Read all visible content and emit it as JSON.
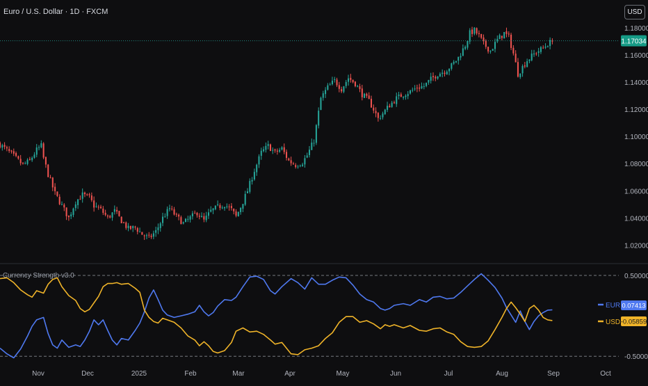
{
  "header": {
    "symbol_title": "Euro / U.S. Dollar · 1D · FXCM",
    "currency_button": "USD"
  },
  "price_axis": {
    "ticks": [
      "1.18000",
      "1.16000",
      "1.14000",
      "1.12000",
      "1.10000",
      "1.08000",
      "1.06000",
      "1.04000",
      "1.02000"
    ],
    "last_price_label": "1.17034"
  },
  "indicator": {
    "title": "Currency Strength v3.0",
    "ticks": [
      "0.50000",
      "-0.50000"
    ],
    "legend": [
      {
        "name": "EUR",
        "value_label": "0.07413"
      },
      {
        "name": "USD",
        "value_label": "-0.05859"
      }
    ]
  },
  "time_axis": {
    "labels": [
      "Nov",
      "Dec",
      "2025",
      "Feb",
      "Mar",
      "Apr",
      "May",
      "Jun",
      "Jul",
      "Aug",
      "Sep",
      "Oct"
    ]
  },
  "colors": {
    "background": "#0e0e10",
    "up": "#26a69a",
    "down": "#ef5350",
    "eur": "#4f79f0",
    "usd": "#f0b429",
    "price_line": "#26a69a",
    "price_badge": "#169b86"
  },
  "chart_data": [
    {
      "type": "candlestick",
      "title": "Euro / U.S. Dollar · 1D · FXCM",
      "ylim": [
        1.01,
        1.185
      ],
      "last_price": 1.17034,
      "closes": [
        [
          0,
          1.094
        ],
        [
          5,
          1.087
        ],
        [
          10,
          1.079
        ],
        [
          13,
          1.082
        ],
        [
          16,
          1.09
        ],
        [
          18,
          1.093
        ],
        [
          19,
          1.084
        ],
        [
          21,
          1.072
        ],
        [
          24,
          1.058
        ],
        [
          27,
          1.049
        ],
        [
          30,
          1.04
        ],
        [
          33,
          1.052
        ],
        [
          36,
          1.057
        ],
        [
          39,
          1.055
        ],
        [
          41,
          1.049
        ],
        [
          44,
          1.046
        ],
        [
          47,
          1.04
        ],
        [
          50,
          1.045
        ],
        [
          53,
          1.038
        ],
        [
          56,
          1.032
        ],
        [
          59,
          1.033
        ],
        [
          62,
          1.028
        ],
        [
          65,
          1.025
        ],
        [
          68,
          1.03
        ],
        [
          71,
          1.04
        ],
        [
          74,
          1.047
        ],
        [
          77,
          1.041
        ],
        [
          80,
          1.036
        ],
        [
          83,
          1.04
        ],
        [
          86,
          1.044
        ],
        [
          89,
          1.038
        ],
        [
          92,
          1.045
        ],
        [
          95,
          1.048
        ],
        [
          98,
          1.05
        ],
        [
          101,
          1.046
        ],
        [
          103,
          1.041
        ],
        [
          105,
          1.048
        ],
        [
          108,
          1.06
        ],
        [
          111,
          1.075
        ],
        [
          114,
          1.088
        ],
        [
          117,
          1.093
        ],
        [
          120,
          1.088
        ],
        [
          123,
          1.091
        ],
        [
          126,
          1.082
        ],
        [
          129,
          1.079
        ],
        [
          132,
          1.081
        ],
        [
          134,
          1.086
        ],
        [
          137,
          1.097
        ],
        [
          140,
          1.128
        ],
        [
          143,
          1.136
        ],
        [
          146,
          1.141
        ],
        [
          149,
          1.135
        ],
        [
          152,
          1.143
        ],
        [
          155,
          1.139
        ],
        [
          158,
          1.131
        ],
        [
          161,
          1.126
        ],
        [
          163,
          1.12
        ],
        [
          165,
          1.113
        ],
        [
          167,
          1.117
        ],
        [
          170,
          1.123
        ],
        [
          173,
          1.128
        ],
        [
          176,
          1.131
        ],
        [
          179,
          1.133
        ],
        [
          182,
          1.136
        ],
        [
          185,
          1.137
        ],
        [
          188,
          1.142
        ],
        [
          191,
          1.146
        ],
        [
          194,
          1.148
        ],
        [
          197,
          1.152
        ],
        [
          200,
          1.158
        ],
        [
          203,
          1.167
        ],
        [
          205,
          1.176
        ],
        [
          207,
          1.178
        ],
        [
          209,
          1.174
        ],
        [
          211,
          1.168
        ],
        [
          214,
          1.163
        ],
        [
          217,
          1.171
        ],
        [
          220,
          1.176
        ],
        [
          222,
          1.173
        ],
        [
          224,
          1.161
        ],
        [
          226,
          1.146
        ],
        [
          228,
          1.151
        ],
        [
          230,
          1.156
        ],
        [
          232,
          1.159
        ],
        [
          234,
          1.162
        ],
        [
          237,
          1.165
        ],
        [
          239,
          1.168
        ],
        [
          241,
          1.17
        ]
      ]
    },
    {
      "type": "line",
      "title": "Currency Strength v3.0",
      "ylim": [
        -0.55,
        0.62
      ],
      "ticks": [
        0.5,
        -0.5
      ],
      "series": [
        {
          "name": "EUR",
          "last_value": 0.07413,
          "points": [
            [
              0,
              -0.4
            ],
            [
              3,
              -0.47
            ],
            [
              6,
              -0.52
            ],
            [
              9,
              -0.41
            ],
            [
              12,
              -0.25
            ],
            [
              14,
              -0.13
            ],
            [
              16,
              -0.05
            ],
            [
              19,
              -0.02
            ],
            [
              21,
              -0.22
            ],
            [
              23,
              -0.36
            ],
            [
              25,
              -0.4
            ],
            [
              27,
              -0.3
            ],
            [
              30,
              -0.39
            ],
            [
              33,
              -0.36
            ],
            [
              35,
              -0.38
            ],
            [
              37,
              -0.3
            ],
            [
              39,
              -0.19
            ],
            [
              41,
              -0.05
            ],
            [
              43,
              -0.11
            ],
            [
              45,
              -0.05
            ],
            [
              47,
              -0.18
            ],
            [
              49,
              -0.3
            ],
            [
              51,
              -0.36
            ],
            [
              53,
              -0.28
            ],
            [
              56,
              -0.3
            ],
            [
              59,
              -0.18
            ],
            [
              61,
              -0.09
            ],
            [
              63,
              0.05
            ],
            [
              65,
              0.22
            ],
            [
              67,
              0.32
            ],
            [
              69,
              0.2
            ],
            [
              71,
              0.07
            ],
            [
              73,
              0.01
            ],
            [
              76,
              -0.02
            ],
            [
              79,
              0.0
            ],
            [
              82,
              0.02
            ],
            [
              85,
              0.05
            ],
            [
              87,
              0.13
            ],
            [
              89,
              0.05
            ],
            [
              91,
              0.0
            ],
            [
              93,
              0.04
            ],
            [
              95,
              0.12
            ],
            [
              98,
              0.2
            ],
            [
              101,
              0.19
            ],
            [
              103,
              0.23
            ],
            [
              106,
              0.36
            ],
            [
              109,
              0.48
            ],
            [
              112,
              0.49
            ],
            [
              115,
              0.45
            ],
            [
              118,
              0.31
            ],
            [
              120,
              0.27
            ],
            [
              123,
              0.36
            ],
            [
              127,
              0.46
            ],
            [
              130,
              0.41
            ],
            [
              133,
              0.33
            ],
            [
              136,
              0.47
            ],
            [
              139,
              0.39
            ],
            [
              142,
              0.39
            ],
            [
              145,
              0.44
            ],
            [
              148,
              0.48
            ],
            [
              151,
              0.47
            ],
            [
              154,
              0.38
            ],
            [
              157,
              0.27
            ],
            [
              160,
              0.2
            ],
            [
              163,
              0.17
            ],
            [
              166,
              0.09
            ],
            [
              168,
              0.07
            ],
            [
              170,
              0.09
            ],
            [
              172,
              0.13
            ],
            [
              176,
              0.15
            ],
            [
              179,
              0.13
            ],
            [
              183,
              0.2
            ],
            [
              186,
              0.17
            ],
            [
              189,
              0.23
            ],
            [
              192,
              0.24
            ],
            [
              195,
              0.21
            ],
            [
              198,
              0.22
            ],
            [
              201,
              0.29
            ],
            [
              204,
              0.37
            ],
            [
              207,
              0.45
            ],
            [
              210,
              0.52
            ],
            [
              213,
              0.44
            ],
            [
              216,
              0.35
            ],
            [
              219,
              0.22
            ],
            [
              221,
              0.1
            ],
            [
              223,
              0.01
            ],
            [
              225,
              -0.08
            ],
            [
              227,
              0.06
            ],
            [
              229,
              -0.07
            ],
            [
              231,
              -0.17
            ],
            [
              233,
              -0.07
            ],
            [
              235,
              0.0
            ],
            [
              237,
              0.04
            ],
            [
              239,
              0.07
            ],
            [
              241,
              0.074
            ]
          ]
        },
        {
          "name": "USD",
          "last_value": -0.05859,
          "points": [
            [
              0,
              0.46
            ],
            [
              3,
              0.47
            ],
            [
              6,
              0.41
            ],
            [
              9,
              0.32
            ],
            [
              12,
              0.26
            ],
            [
              14,
              0.23
            ],
            [
              16,
              0.31
            ],
            [
              19,
              0.28
            ],
            [
              21,
              0.39
            ],
            [
              23,
              0.45
            ],
            [
              25,
              0.47
            ],
            [
              27,
              0.36
            ],
            [
              30,
              0.25
            ],
            [
              33,
              0.19
            ],
            [
              35,
              0.09
            ],
            [
              37,
              0.05
            ],
            [
              39,
              0.08
            ],
            [
              41,
              0.16
            ],
            [
              43,
              0.24
            ],
            [
              45,
              0.36
            ],
            [
              47,
              0.4
            ],
            [
              49,
              0.4
            ],
            [
              51,
              0.41
            ],
            [
              53,
              0.39
            ],
            [
              56,
              0.4
            ],
            [
              59,
              0.34
            ],
            [
              61,
              0.29
            ],
            [
              63,
              0.07
            ],
            [
              65,
              -0.02
            ],
            [
              67,
              -0.07
            ],
            [
              69,
              -0.09
            ],
            [
              71,
              -0.03
            ],
            [
              73,
              -0.05
            ],
            [
              76,
              -0.08
            ],
            [
              79,
              -0.15
            ],
            [
              82,
              -0.25
            ],
            [
              85,
              -0.3
            ],
            [
              87,
              -0.37
            ],
            [
              89,
              -0.32
            ],
            [
              91,
              -0.37
            ],
            [
              93,
              -0.44
            ],
            [
              95,
              -0.46
            ],
            [
              98,
              -0.43
            ],
            [
              101,
              -0.33
            ],
            [
              103,
              -0.19
            ],
            [
              106,
              -0.15
            ],
            [
              109,
              -0.2
            ],
            [
              112,
              -0.19
            ],
            [
              115,
              -0.23
            ],
            [
              118,
              -0.3
            ],
            [
              120,
              -0.35
            ],
            [
              123,
              -0.33
            ],
            [
              127,
              -0.47
            ],
            [
              130,
              -0.48
            ],
            [
              133,
              -0.42
            ],
            [
              136,
              -0.4
            ],
            [
              139,
              -0.37
            ],
            [
              142,
              -0.28
            ],
            [
              145,
              -0.21
            ],
            [
              148,
              -0.08
            ],
            [
              151,
              -0.01
            ],
            [
              154,
              -0.01
            ],
            [
              157,
              -0.08
            ],
            [
              160,
              -0.06
            ],
            [
              163,
              -0.1
            ],
            [
              166,
              -0.16
            ],
            [
              168,
              -0.11
            ],
            [
              170,
              -0.13
            ],
            [
              172,
              -0.11
            ],
            [
              176,
              -0.15
            ],
            [
              179,
              -0.12
            ],
            [
              183,
              -0.18
            ],
            [
              186,
              -0.19
            ],
            [
              189,
              -0.16
            ],
            [
              192,
              -0.15
            ],
            [
              195,
              -0.2
            ],
            [
              198,
              -0.23
            ],
            [
              201,
              -0.32
            ],
            [
              204,
              -0.38
            ],
            [
              207,
              -0.39
            ],
            [
              210,
              -0.38
            ],
            [
              213,
              -0.31
            ],
            [
              216,
              -0.17
            ],
            [
              219,
              -0.02
            ],
            [
              221,
              0.09
            ],
            [
              223,
              0.17
            ],
            [
              225,
              0.1
            ],
            [
              227,
              0.02
            ],
            [
              229,
              -0.07
            ],
            [
              231,
              0.09
            ],
            [
              233,
              0.13
            ],
            [
              235,
              0.07
            ],
            [
              237,
              -0.02
            ],
            [
              239,
              -0.05
            ],
            [
              241,
              -0.059
            ]
          ]
        }
      ]
    }
  ]
}
